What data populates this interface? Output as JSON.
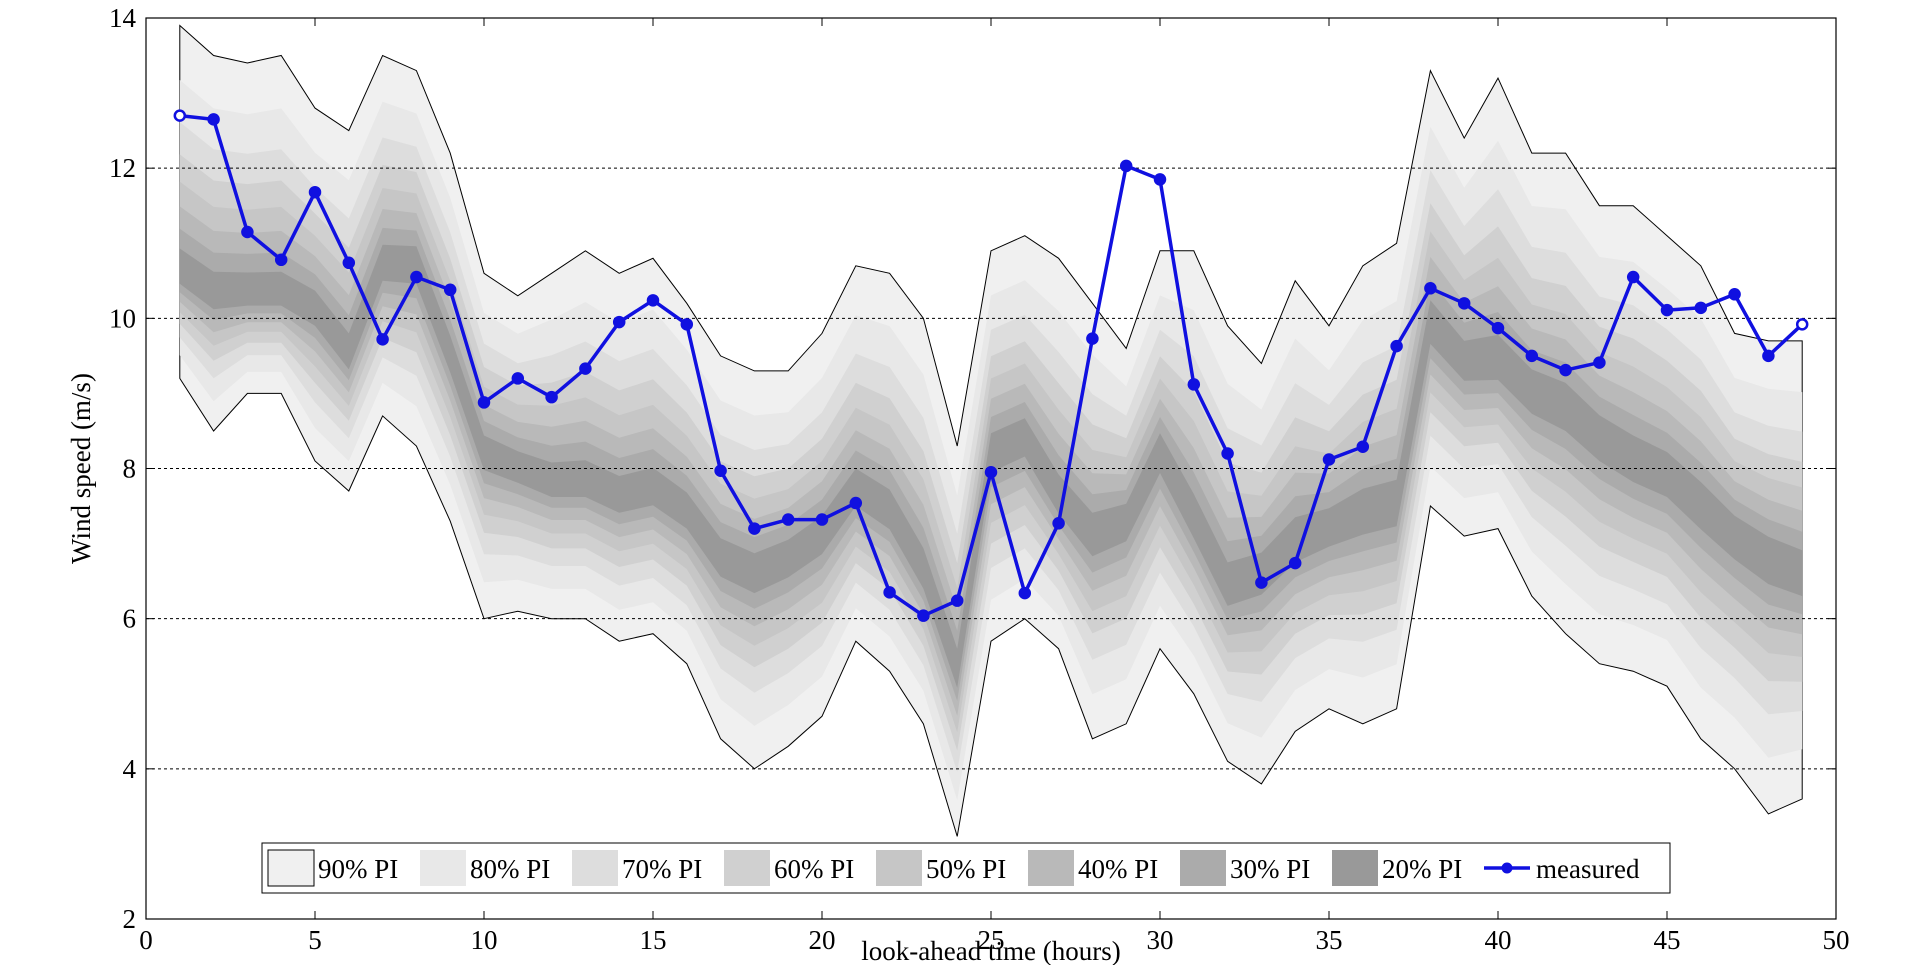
{
  "chart_data": {
    "type": "area",
    "xlabel": "look-ahead time (hours)",
    "ylabel": "Wind speed (m/s)",
    "xlim": [
      0,
      50
    ],
    "ylim": [
      2,
      14
    ],
    "xticks": [
      0,
      5,
      10,
      15,
      20,
      25,
      30,
      35,
      40,
      45,
      50
    ],
    "yticks": [
      2,
      4,
      6,
      8,
      10,
      12,
      14
    ],
    "grid": "horizontal dashed",
    "legend_placement": "bottom-center",
    "x": [
      1,
      2,
      3,
      4,
      5,
      6,
      7,
      8,
      9,
      10,
      11,
      12,
      13,
      14,
      15,
      16,
      17,
      18,
      19,
      20,
      21,
      22,
      23,
      24,
      25,
      26,
      27,
      28,
      29,
      30,
      31,
      32,
      33,
      34,
      35,
      36,
      37,
      38,
      39,
      40,
      41,
      42,
      43,
      44,
      45,
      46,
      47,
      48,
      49
    ],
    "median": [
      10.6,
      10.3,
      10.3,
      10.3,
      10.1,
      9.5,
      10.7,
      10.7,
      9.5,
      8.2,
      8.0,
      7.8,
      7.8,
      7.6,
      7.7,
      7.4,
      6.8,
      6.6,
      6.8,
      7.1,
      7.7,
      7.4,
      6.6,
      5.3,
      8.2,
      8.4,
      7.6,
      7.1,
      7.3,
      8.2,
      7.3,
      6.4,
      6.6,
      7.0,
      7.2,
      7.4,
      7.5,
      9.9,
      9.4,
      9.4,
      9.0,
      8.8,
      8.4,
      8.1,
      7.9,
      7.5,
      7.1,
      6.8,
      6.6
    ],
    "bands": [
      {
        "name": "90% PI",
        "color": "#f0f0f0",
        "upper": [
          13.9,
          13.5,
          13.4,
          13.5,
          12.8,
          12.5,
          13.5,
          13.3,
          12.2,
          10.6,
          10.3,
          10.6,
          10.9,
          10.6,
          10.8,
          10.2,
          9.5,
          9.3,
          9.3,
          9.8,
          10.7,
          10.6,
          10.0,
          8.3,
          10.9,
          11.1,
          10.8,
          10.2,
          9.6,
          10.9,
          10.9,
          9.9,
          9.4,
          10.5,
          9.9,
          10.7,
          11.0,
          13.3,
          12.4,
          13.2,
          12.2,
          12.2,
          11.5,
          11.5,
          11.1,
          10.7,
          9.8,
          9.7,
          9.7
        ],
        "lower": [
          9.2,
          8.5,
          9.0,
          9.0,
          8.1,
          7.7,
          8.7,
          8.3,
          7.3,
          6.0,
          6.1,
          6.0,
          6.0,
          5.7,
          5.8,
          5.4,
          4.4,
          4.0,
          4.3,
          4.7,
          5.7,
          5.3,
          4.6,
          3.1,
          5.7,
          6.0,
          5.6,
          4.4,
          4.6,
          5.6,
          5.0,
          4.1,
          3.8,
          4.5,
          4.8,
          4.6,
          4.8,
          7.5,
          7.1,
          7.2,
          6.3,
          5.8,
          5.4,
          5.3,
          5.1,
          4.4,
          4.0,
          3.4,
          3.6
        ]
      },
      {
        "name": "80% PI",
        "color": "#e8e8e8",
        "upper": [],
        "lower": []
      },
      {
        "name": "70% PI",
        "color": "#dddddd",
        "upper": [],
        "lower": []
      },
      {
        "name": "60% PI",
        "color": "#d0d0d0",
        "upper": [],
        "lower": []
      },
      {
        "name": "50% PI",
        "color": "#c6c6c6",
        "upper": [],
        "lower": []
      },
      {
        "name": "40% PI",
        "color": "#b9b9b9",
        "upper": [],
        "lower": []
      },
      {
        "name": "30% PI",
        "color": "#ababab",
        "upper": [],
        "lower": []
      },
      {
        "name": "20% PI",
        "color": "#999999",
        "upper": [],
        "lower": []
      }
    ],
    "band_fractions": [
      1.0,
      0.78,
      0.61,
      0.48,
      0.37,
      0.27,
      0.18,
      0.1
    ],
    "measured": {
      "name": "measured",
      "color": "#1010e0",
      "values": [
        12.7,
        12.65,
        11.15,
        10.78,
        11.68,
        10.74,
        9.72,
        10.55,
        10.38,
        8.88,
        9.2,
        8.95,
        9.33,
        9.95,
        10.24,
        9.92,
        7.97,
        7.2,
        7.32,
        7.32,
        7.54,
        6.35,
        6.04,
        6.24,
        7.95,
        6.34,
        7.27,
        9.73,
        12.03,
        11.85,
        9.12,
        8.2,
        6.48,
        6.74,
        8.12,
        8.29,
        9.63,
        10.4,
        10.2,
        9.87,
        9.5,
        9.31,
        9.41,
        10.55,
        10.11,
        10.14,
        10.32,
        9.5,
        9.92
      ]
    }
  }
}
